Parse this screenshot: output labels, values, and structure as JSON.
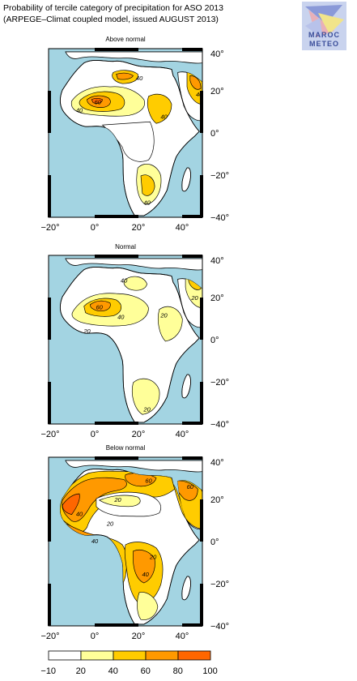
{
  "title_line1": "Probability of tercile category of precipitation for ASO 2013",
  "title_line2": "(ARPEGE–Climat coupled model, issued AUGUST 2013)",
  "logo": {
    "line1": "MAROC",
    "line2": "METEO"
  },
  "panels": [
    {
      "label": "Above normal",
      "contour_labels": [
        "60",
        "40",
        "40",
        "40",
        "40",
        "40"
      ]
    },
    {
      "label": "Normal",
      "contour_labels": [
        "60",
        "40",
        "20",
        "40",
        "20",
        "20",
        "20"
      ]
    },
    {
      "label": "Below normal",
      "contour_labels": [
        "20",
        "20",
        "20",
        "40",
        "60",
        "60",
        "40",
        "40"
      ]
    }
  ],
  "x_ticks": [
    "−20°",
    "0°",
    "20°",
    "40°"
  ],
  "y_ticks": [
    "40°",
    "20°",
    "0°",
    "−20°",
    "−40°"
  ],
  "colorbar": {
    "labels": [
      "−10",
      "20",
      "40",
      "60",
      "80",
      "100"
    ],
    "colors": [
      "#ffffff",
      "#ffff99",
      "#ffcc00",
      "#ff9900",
      "#ff6600"
    ]
  },
  "colors": {
    "ocean": "#a3d4e2",
    "land": "#ffffff",
    "c1": "#ffff99",
    "c2": "#ffcc00",
    "c3": "#ff9900",
    "c4": "#ff6600"
  }
}
